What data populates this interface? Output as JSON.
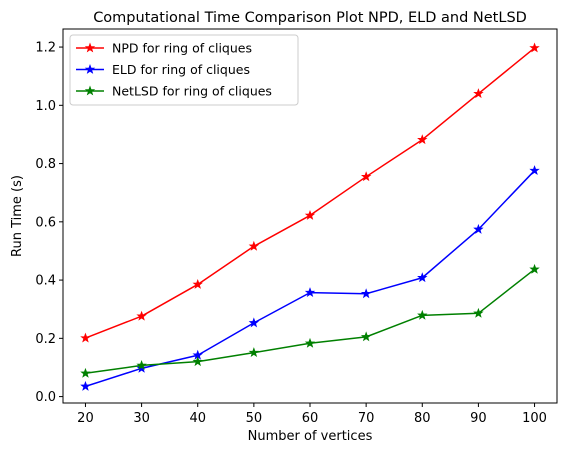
{
  "chart_data": {
    "type": "line",
    "title": "Computational Time Comparison Plot NPD, ELD and NetLSD",
    "xlabel": "Number of vertices",
    "ylabel": "Run Time (s)",
    "x": [
      20,
      30,
      40,
      50,
      60,
      70,
      80,
      90,
      100
    ],
    "xlim": [
      16,
      104
    ],
    "ylim": [
      -0.022,
      1.262
    ],
    "xticks": [
      20,
      30,
      40,
      50,
      60,
      70,
      80,
      90,
      100
    ],
    "yticks": [
      0.0,
      0.2,
      0.4,
      0.6,
      0.8,
      1.0,
      1.2
    ],
    "ytick_labels": [
      "0.0",
      "0.2",
      "0.4",
      "0.6",
      "0.8",
      "1.0",
      "1.2"
    ],
    "grid": false,
    "legend_position": "top-left",
    "marker": "star",
    "series": [
      {
        "name": "NPD for ring of cliques",
        "color": "#ff0000",
        "values": [
          0.201,
          0.276,
          0.385,
          0.516,
          0.622,
          0.755,
          0.882,
          1.04,
          1.197
        ]
      },
      {
        "name": "ELD for ring of cliques",
        "color": "#0000ff",
        "values": [
          0.035,
          0.097,
          0.142,
          0.253,
          0.357,
          0.353,
          0.408,
          0.574,
          0.776
        ]
      },
      {
        "name": "NetLSD for ring of cliques",
        "color": "#008000",
        "values": [
          0.08,
          0.107,
          0.12,
          0.151,
          0.183,
          0.205,
          0.279,
          0.286,
          0.437
        ]
      }
    ]
  }
}
